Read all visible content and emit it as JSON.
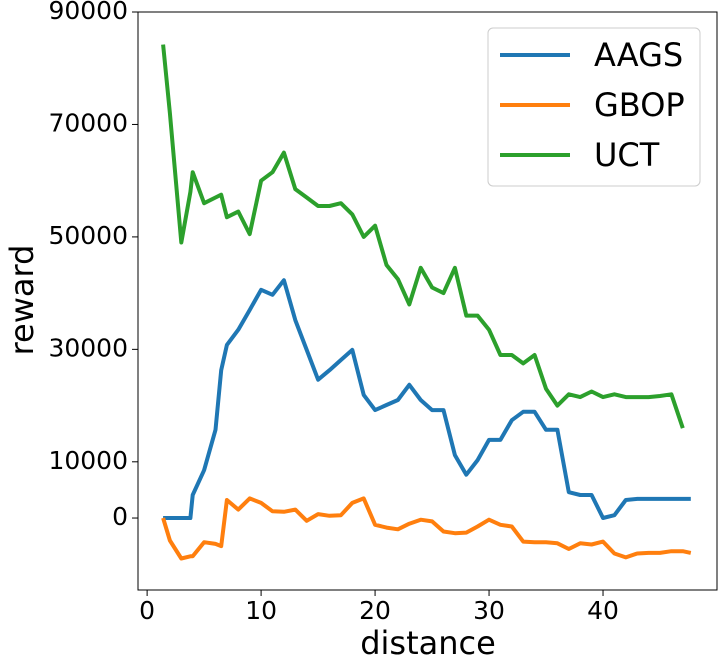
{
  "chart_data": {
    "type": "line",
    "x_label": "distance",
    "y_label": "reward",
    "x": [
      1.4,
      2,
      3,
      3.8,
      4,
      5,
      6,
      6.5,
      7,
      8,
      9,
      10,
      11,
      12,
      13,
      14,
      15,
      16,
      17,
      18,
      19,
      20,
      21,
      22,
      23,
      24,
      25,
      26,
      27,
      28,
      29,
      30,
      31,
      32,
      33,
      34,
      35,
      36,
      37,
      38,
      39,
      40,
      41,
      42,
      43,
      44,
      45,
      46,
      47,
      47.7
    ],
    "series": [
      {
        "name": "AAGS",
        "color": "#1f77b4",
        "values": [
          0,
          0,
          0,
          0,
          4100,
          8500,
          15700,
          26300,
          30800,
          33500,
          37000,
          40600,
          39700,
          42300,
          35200,
          29900,
          24600,
          26300,
          28100,
          29900,
          21900,
          19200,
          20100,
          21000,
          23700,
          21000,
          19200,
          19200,
          11200,
          7700,
          10300,
          13900,
          13900,
          17400,
          18900,
          18900,
          15700,
          15700,
          4600,
          4100,
          4100,
          0,
          500,
          3200,
          3400,
          3400,
          3400,
          3400,
          3400,
          3400
        ]
      },
      {
        "name": "GBOP",
        "color": "#ff7f0e",
        "values": [
          0,
          -4000,
          -7200,
          -6800,
          -6800,
          -4300,
          -4600,
          -5000,
          3200,
          1500,
          3500,
          2700,
          1200,
          1100,
          1500,
          -500,
          700,
          400,
          500,
          2700,
          3500,
          -1200,
          -1700,
          -2000,
          -1000,
          -300,
          -600,
          -2400,
          -2700,
          -2600,
          -1500,
          -300,
          -1200,
          -1500,
          -4200,
          -4300,
          -4300,
          -4500,
          -5500,
          -4500,
          -4700,
          -4200,
          -6300,
          -7000,
          -6300,
          -6200,
          -6200,
          -5900,
          -5900,
          -6200
        ]
      },
      {
        "name": "UCT",
        "color": "#2ca02c",
        "values": [
          84200,
          72000,
          49000,
          58000,
          61500,
          56000,
          57000,
          57500,
          53500,
          54500,
          50500,
          60000,
          61500,
          65000,
          58500,
          57000,
          55500,
          55500,
          56000,
          54000,
          50000,
          52000,
          45000,
          42500,
          38000,
          44500,
          41000,
          40000,
          44500,
          36000,
          36000,
          33500,
          29000,
          29000,
          27500,
          29000,
          23000,
          20000,
          22000,
          21500,
          22500,
          21500,
          22000,
          21500,
          21500,
          21500,
          21700,
          22000,
          16000,
          null
        ]
      }
    ],
    "xlim": [
      -0.8,
      50
    ],
    "ylim": [
      -12800,
      90000
    ],
    "xticks": [
      0,
      10,
      20,
      30,
      40
    ],
    "yticks": [
      0,
      10000,
      30000,
      50000,
      70000,
      90000
    ],
    "legend": "upper right"
  }
}
